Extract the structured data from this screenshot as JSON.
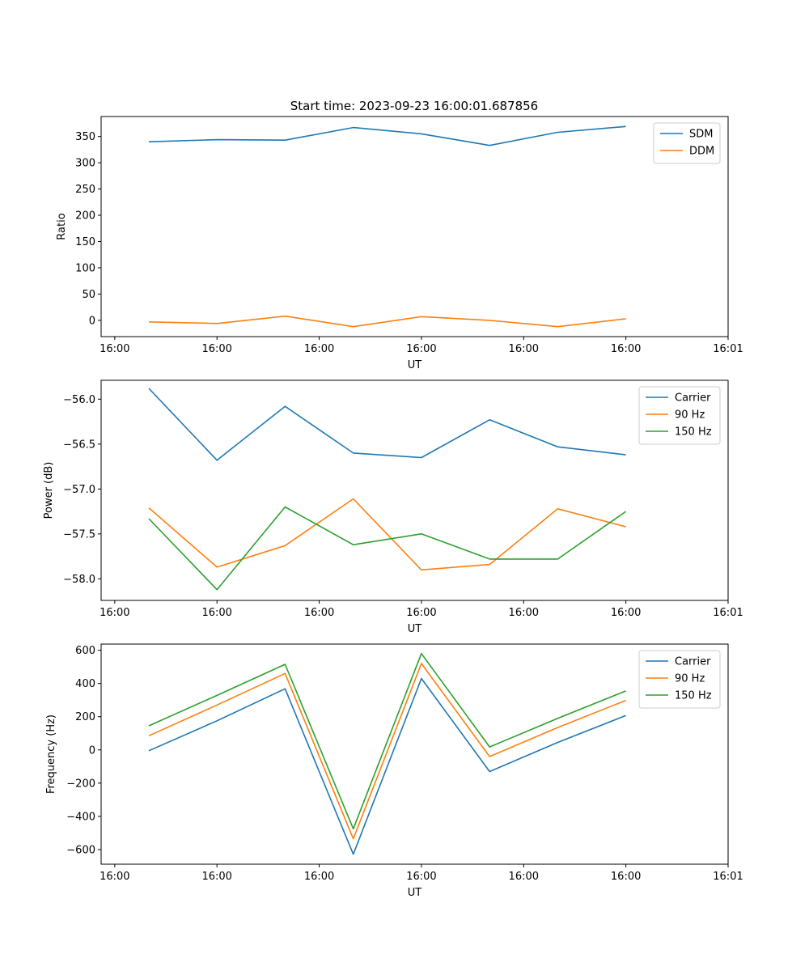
{
  "figure": {
    "title": "Start time: 2023-09-23 16:00:01.687856"
  },
  "chart_data": [
    {
      "type": "line",
      "id": "ratio",
      "title": "Start time: 2023-09-23 16:00:01.687856",
      "xlabel": "UT",
      "ylabel": "Ratio",
      "x": [
        1,
        2,
        3,
        4,
        5,
        6,
        7,
        8
      ],
      "xlim": [
        0.3,
        9.5
      ],
      "xticks": [
        0.5,
        2,
        3.5,
        5,
        6.5,
        8,
        9.5
      ],
      "xtick_labels": [
        "16:00",
        "16:00",
        "16:00",
        "16:00",
        "16:00",
        "16:00",
        "16:01"
      ],
      "ylim": [
        -31,
        388
      ],
      "yticks": [
        0,
        50,
        100,
        150,
        200,
        250,
        300,
        350
      ],
      "ytick_labels": [
        "0",
        "50",
        "100",
        "150",
        "200",
        "250",
        "300",
        "350"
      ],
      "legend_position": "top-right",
      "series": [
        {
          "name": "SDM",
          "color": "#1f77b4",
          "values": [
            340,
            344,
            343,
            367,
            355,
            333,
            358,
            369
          ]
        },
        {
          "name": "DDM",
          "color": "#ff7f0e",
          "values": [
            -3,
            -6,
            8,
            -12,
            7,
            0,
            -12,
            3
          ]
        }
      ]
    },
    {
      "type": "line",
      "id": "power",
      "xlabel": "UT",
      "ylabel": "Power (dB)",
      "x": [
        1,
        2,
        3,
        4,
        5,
        6,
        7,
        8
      ],
      "xlim": [
        0.3,
        9.5
      ],
      "xticks": [
        0.5,
        2,
        3.5,
        5,
        6.5,
        8,
        9.5
      ],
      "xtick_labels": [
        "16:00",
        "16:00",
        "16:00",
        "16:00",
        "16:00",
        "16:00",
        "16:01"
      ],
      "ylim": [
        -58.24,
        -55.79
      ],
      "yticks": [
        -58.0,
        -57.5,
        -57.0,
        -56.5,
        -56.0
      ],
      "ytick_labels": [
        "−58.0",
        "−57.5",
        "−57.0",
        "−56.5",
        "−56.0"
      ],
      "legend_position": "top-right",
      "series": [
        {
          "name": "Carrier",
          "color": "#1f77b4",
          "values": [
            -55.88,
            -56.68,
            -56.08,
            -56.6,
            -56.65,
            -56.23,
            -56.53,
            -56.62
          ]
        },
        {
          "name": "90 Hz",
          "color": "#ff7f0e",
          "values": [
            -57.21,
            -57.87,
            -57.63,
            -57.11,
            -57.9,
            -57.84,
            -57.22,
            -57.42
          ]
        },
        {
          "name": "150 Hz",
          "color": "#2ca02c",
          "values": [
            -57.33,
            -58.12,
            -57.2,
            -57.62,
            -57.5,
            -57.78,
            -57.78,
            -57.25
          ]
        }
      ]
    },
    {
      "type": "line",
      "id": "frequency",
      "xlabel": "UT",
      "ylabel": "Frequency (Hz)",
      "x": [
        1,
        2,
        3,
        4,
        5,
        6,
        7,
        8
      ],
      "xlim": [
        0.3,
        9.5
      ],
      "xticks": [
        0.5,
        2,
        3.5,
        5,
        6.5,
        8,
        9.5
      ],
      "xtick_labels": [
        "16:00",
        "16:00",
        "16:00",
        "16:00",
        "16:00",
        "16:00",
        "16:01"
      ],
      "ylim": [
        -688,
        637
      ],
      "yticks": [
        -600,
        -400,
        -200,
        0,
        200,
        400,
        600
      ],
      "ytick_labels": [
        "−600",
        "−400",
        "−200",
        "0",
        "200",
        "400",
        "600"
      ],
      "legend_position": "top-right",
      "series": [
        {
          "name": "Carrier",
          "color": "#1f77b4",
          "values": [
            -5,
            175,
            368,
            -628,
            430,
            -130,
            45,
            207
          ]
        },
        {
          "name": "90 Hz",
          "color": "#ff7f0e",
          "values": [
            85,
            270,
            460,
            -535,
            520,
            -40,
            135,
            298
          ]
        },
        {
          "name": "150 Hz",
          "color": "#2ca02c",
          "values": [
            145,
            328,
            515,
            -475,
            580,
            18,
            190,
            355
          ]
        }
      ]
    }
  ]
}
